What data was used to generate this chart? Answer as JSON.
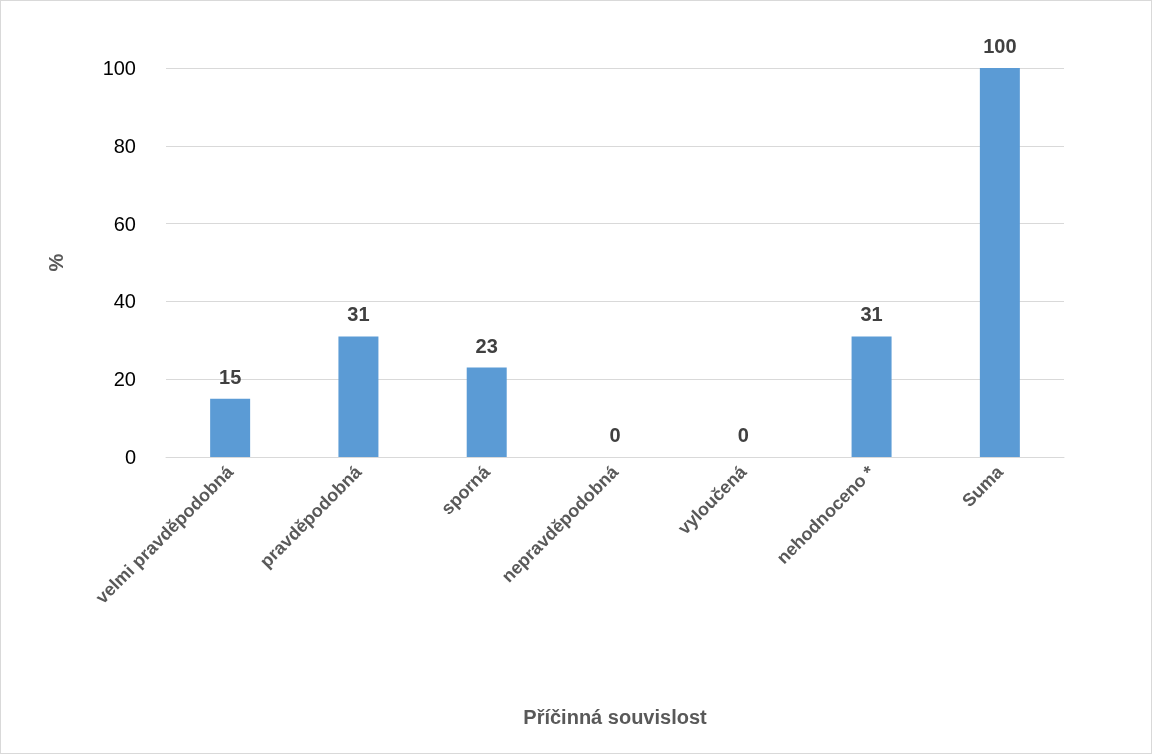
{
  "chart_data": {
    "type": "bar",
    "xlabel": "Příčinná souvislost",
    "ylabel": "%",
    "categories": [
      "velmi pravděpodobná",
      "pravděpodobná",
      "sporná",
      "nepravděpodobná",
      "vyloučená",
      "nehodnoceno *",
      "Suma"
    ],
    "values": [
      15,
      31,
      23,
      0,
      0,
      31,
      100
    ],
    "color": "#5b9bd5",
    "ylim": [
      0,
      100
    ],
    "yticks": [
      0,
      20,
      40,
      60,
      80,
      100
    ],
    "grid": "y",
    "data_labels": true
  }
}
